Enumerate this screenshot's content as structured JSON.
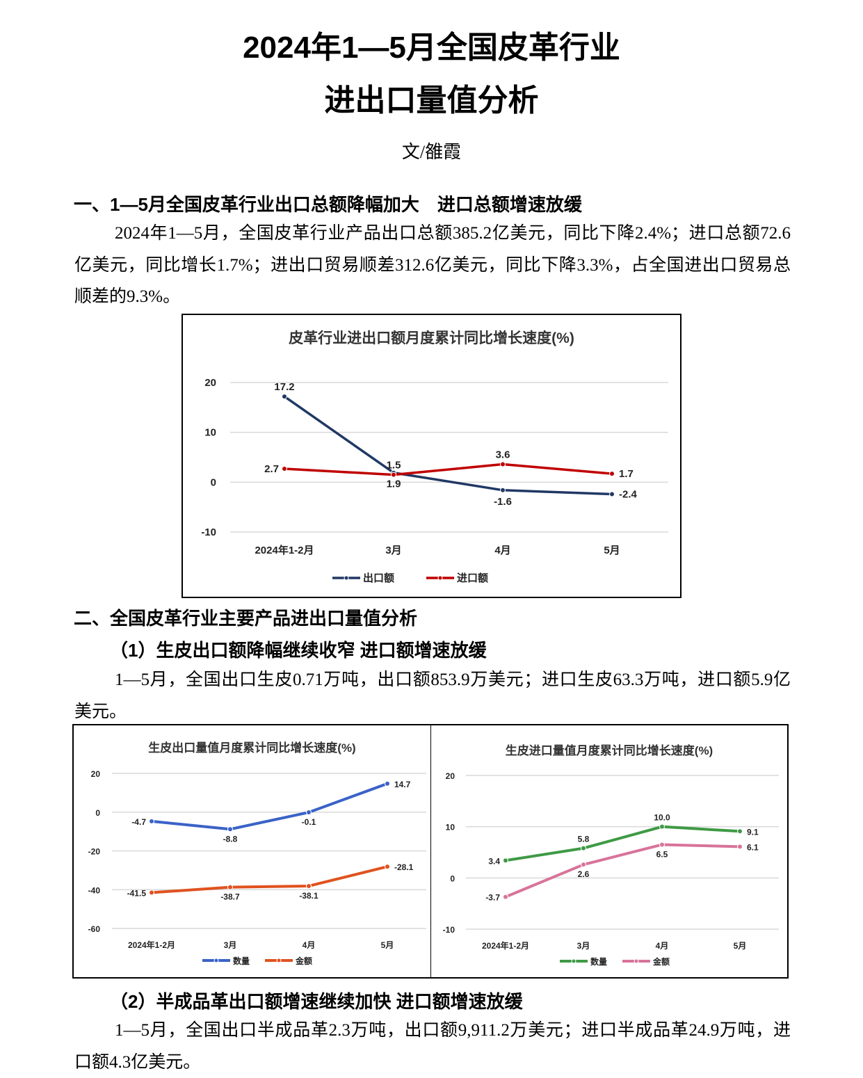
{
  "title_line1": "2024年1—5月全国皮革行业",
  "title_line2": "进出口量值分析",
  "byline": "文/雒霞",
  "section1": {
    "heading": "一、1—5月全国皮革行业出口总额降幅加大　进口总额增速放缓",
    "paragraph": "2024年1—5月，全国皮革行业产品出口总额385.2亿美元，同比下降2.4%；进口总额72.6亿美元，同比增长1.7%；进出口贸易顺差312.6亿美元，同比下降3.3%，占全国进出口贸易总顺差的9.3%。"
  },
  "section2": {
    "heading": "二、全国皮革行业主要产品进出口量值分析",
    "sub1": {
      "heading": "（1）生皮出口额降幅继续收窄 进口额增速放缓",
      "paragraph": "1—5月，全国出口生皮0.71万吨，出口额853.9万美元；进口生皮63.3万吨，进口额5.9亿美元。"
    },
    "sub2": {
      "heading": "（2）半成品革出口额增速继续加快 进口额增速放缓",
      "paragraph": "1—5月，全国出口半成品革2.3万吨，出口额9,911.2万美元；进口半成品革24.9万吨，进口额4.3亿美元。"
    }
  },
  "chart_data": [
    {
      "type": "line",
      "title": "皮革行业进出口额月度累计同比增长速度(%)",
      "categories": [
        "2024年1-2月",
        "3月",
        "4月",
        "5月"
      ],
      "yticks": [
        20,
        10,
        0,
        -10
      ],
      "ylim": [
        -10,
        20
      ],
      "grid": true,
      "legend": "bottom",
      "series": [
        {
          "name": "出口额",
          "values": [
            17.2,
            1.9,
            -1.6,
            -2.4
          ],
          "color": "#203864"
        },
        {
          "name": "进口额",
          "values": [
            2.7,
            1.5,
            3.6,
            1.7
          ],
          "color": "#C00000"
        }
      ]
    },
    {
      "type": "line",
      "title": "生皮出口量值月度累计同比增长速度(%)",
      "categories": [
        "2024年1-2月",
        "3月",
        "4月",
        "5月"
      ],
      "yticks": [
        20,
        0,
        -20,
        -40,
        -60
      ],
      "ylim": [
        -60,
        20
      ],
      "grid": true,
      "legend": "bottom",
      "series": [
        {
          "name": "数量",
          "values": [
            -4.7,
            -8.8,
            -0.1,
            14.7
          ],
          "color": "#3A62C8"
        },
        {
          "name": "金额",
          "values": [
            -41.5,
            -38.7,
            -38.1,
            -28.1
          ],
          "color": "#E0521F"
        }
      ]
    },
    {
      "type": "line",
      "title": "生皮进口量值月度累计同比增长速度(%)",
      "categories": [
        "2024年1-2月",
        "3月",
        "4月",
        "5月"
      ],
      "yticks": [
        20,
        10,
        0,
        -10
      ],
      "ylim": [
        -10,
        20
      ],
      "grid": true,
      "legend": "bottom",
      "series": [
        {
          "name": "数量",
          "values": [
            3.4,
            5.8,
            10.0,
            9.1
          ],
          "color": "#3E9A45"
        },
        {
          "name": "金额",
          "values": [
            -3.7,
            2.6,
            6.5,
            6.1
          ],
          "color": "#D8739A"
        }
      ]
    }
  ]
}
